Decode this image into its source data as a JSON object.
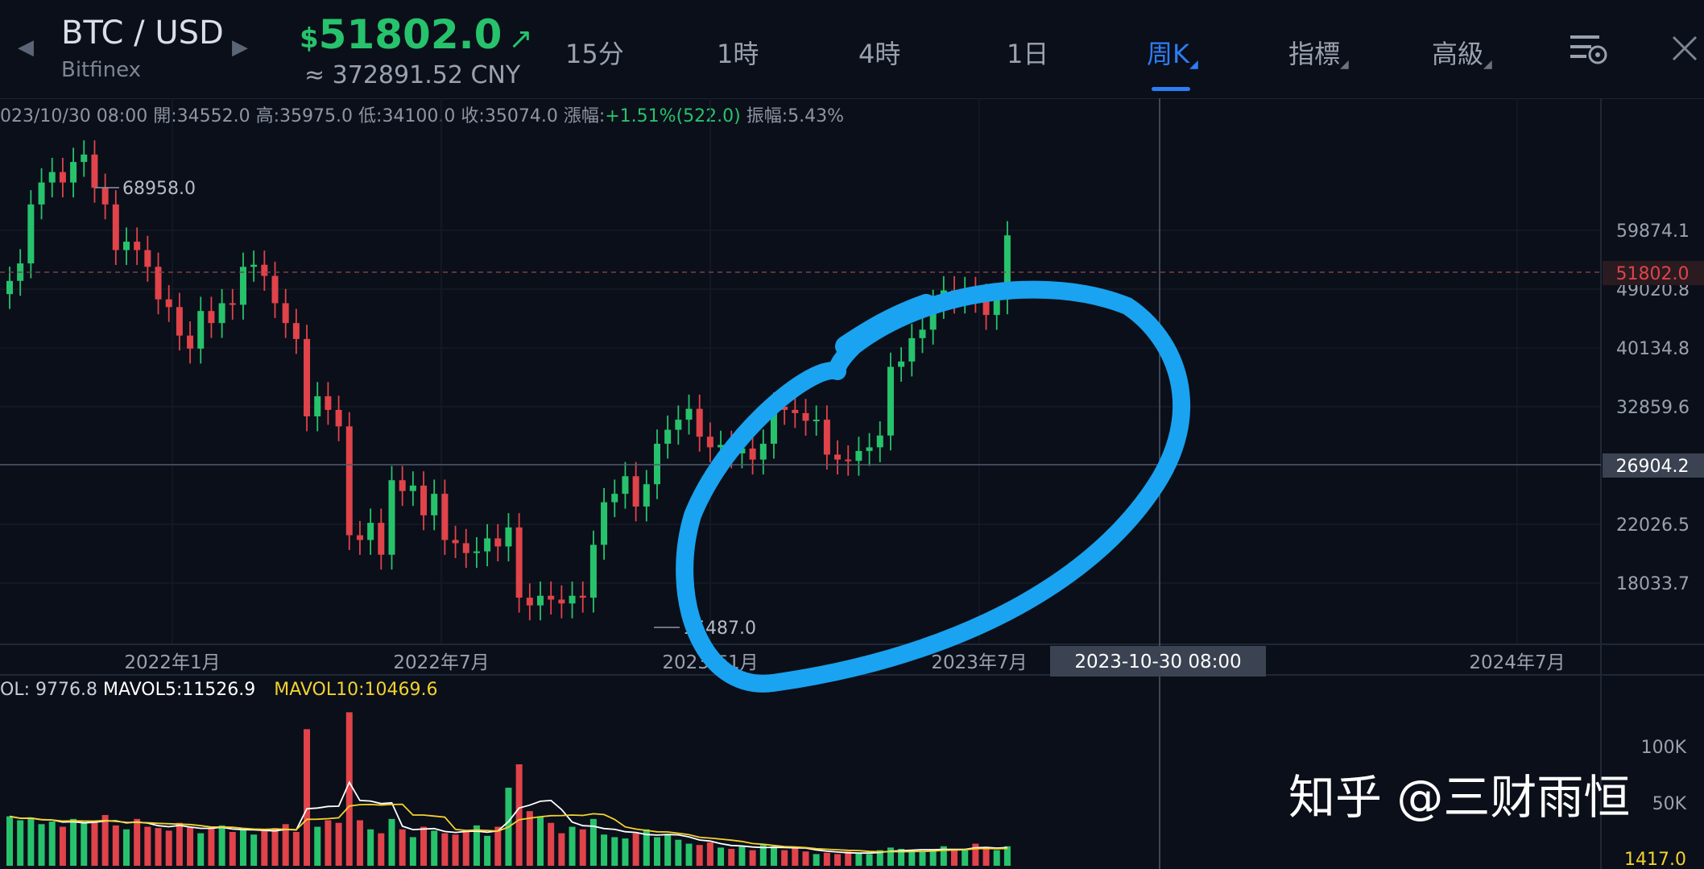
{
  "header": {
    "pair": "BTC / USD",
    "exchange": "Bitfinex",
    "price_symbol": "$",
    "price": "51802.0",
    "price_cny": "≈ 372891.52 CNY",
    "tabs": [
      {
        "label": "15分",
        "active": false
      },
      {
        "label": "1時",
        "active": false
      },
      {
        "label": "4時",
        "active": false
      },
      {
        "label": "1日",
        "active": false
      },
      {
        "label": "周K",
        "active": true
      },
      {
        "label": "指標",
        "active": false
      },
      {
        "label": "高級",
        "active": false
      }
    ],
    "accent_color": "#2d7df6",
    "icons": [
      "chevron-left-icon",
      "chevron-right-icon",
      "arrow-up-right-icon",
      "chart-settings-icon",
      "close-icon"
    ]
  },
  "infobar": {
    "date": "023/10/30 08:00",
    "open_label": "開:",
    "open": "34552.0",
    "high_label": "高:",
    "high": "35975.0",
    "low_label": "低:",
    "low": "34100.0",
    "close_label": "收:",
    "close": "35074.0",
    "change_label": "漲幅:",
    "change": "+1.51%(522.0)",
    "amplitude_label": "振幅:",
    "amplitude": "5.43%"
  },
  "volume_bar": {
    "vol": "OL: 9776.8",
    "mavol5": "MAVOL5:11526.9",
    "mavol10": "MAVOL10:10469.6"
  },
  "annotations": {
    "high_marker": "68958.0",
    "low_marker": "15487.0",
    "crosshair_date": "2023-10-30 08:00",
    "crosshair_price": "26904.2",
    "current_price_tag": "51802.0",
    "watermark": "知乎 @三财雨恒"
  },
  "colors": {
    "up": "#27c26c",
    "down": "#e0434a",
    "ma5": "#ffffff",
    "ma10": "#f2d230",
    "circle": "#1aa3f0",
    "background": "#0b0f19"
  },
  "chart_data": {
    "type": "candlestick",
    "interval": "weekly",
    "ylim": [
      15000,
      72000
    ],
    "y_ticks": [
      "59874.1",
      "49020.8",
      "40134.8",
      "32859.6",
      "26904.2",
      "22026.5",
      "18033.7"
    ],
    "x_ticks": [
      "2022年1月",
      "2022年7月",
      "2023年1月",
      "2023年7月",
      "2024年7月"
    ],
    "volume_ticks": [
      "100K",
      "50K",
      "1417.0"
    ],
    "close_series": [
      45000,
      47500,
      57000,
      61000,
      63000,
      61000,
      65000,
      66500,
      60000,
      57000,
      49500,
      50800,
      49500,
      47000,
      42500,
      41500,
      38000,
      36500,
      41000,
      39500,
      42000,
      41800,
      47000,
      47300,
      45700,
      42000,
      39500,
      37600,
      29600,
      31500,
      30200,
      28700,
      20500,
      20200,
      21300,
      19300,
      24300,
      23500,
      23900,
      21800,
      23300,
      20200,
      20000,
      19400,
      19500,
      20300,
      19800,
      21000,
      16900,
      16500,
      17000,
      16800,
      16600,
      17000,
      16900,
      19900,
      22700,
      23300,
      24600,
      22400,
      24000,
      27200,
      28400,
      29300,
      30300,
      27800,
      26900,
      27100,
      26400,
      26800,
      25900,
      27200,
      30500,
      30200,
      29900,
      29200,
      29300,
      26300,
      25900,
      25800,
      26600,
      26900,
      27900,
      34500,
      35074,
      37700,
      38700,
      41900,
      43700,
      42600,
      43600,
      42700,
      40500,
      42500,
      51802
    ],
    "volume_series": [
      38000,
      35000,
      37000,
      32000,
      34000,
      30000,
      36000,
      33000,
      34000,
      39000,
      31000,
      28000,
      36000,
      30000,
      29000,
      27000,
      33000,
      30000,
      25000,
      29000,
      31000,
      26000,
      28000,
      24000,
      27000,
      29000,
      32000,
      26000,
      105000,
      30000,
      35000,
      33000,
      118000,
      35000,
      28000,
      25000,
      36000,
      28000,
      22000,
      30000,
      27000,
      25000,
      24000,
      26000,
      31000,
      23000,
      30000,
      60000,
      78000,
      42000,
      38000,
      33000,
      25000,
      30000,
      28000,
      36000,
      24000,
      22000,
      21000,
      25000,
      28000,
      22000,
      24000,
      20000,
      17000,
      16000,
      18000,
      14000,
      13000,
      15000,
      12000,
      16000,
      15000,
      12000,
      14000,
      11000,
      9000,
      10000,
      9000,
      11000,
      10000,
      9000,
      12000,
      14000,
      13000,
      12000,
      11000,
      12000,
      15000,
      13000,
      12000,
      17000,
      14000,
      12000,
      15000
    ],
    "annotation_circle": "highlighted 2023 range"
  }
}
